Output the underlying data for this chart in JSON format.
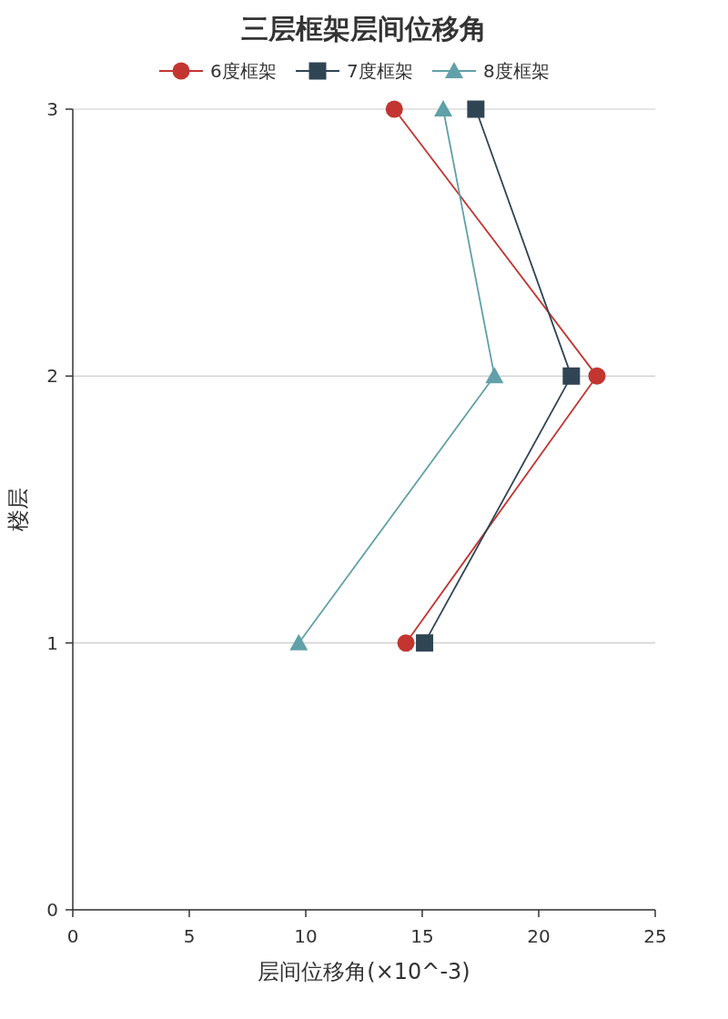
{
  "chart_data": {
    "type": "line",
    "title": "三层框架层间位移角",
    "xlabel": "层间位移角(×10^-3)",
    "ylabel": "楼层",
    "xlim": [
      0,
      25
    ],
    "xticks": [
      0,
      5,
      10,
      15,
      20,
      25
    ],
    "ylim": [
      0,
      3
    ],
    "yticks": [
      0,
      1,
      2,
      3
    ],
    "grid": "y",
    "legend": "top",
    "series": [
      {
        "name": "6度框架",
        "color": "#c23531",
        "marker": "circle",
        "x": [
          14.3,
          22.5,
          13.8
        ],
        "values": [
          1,
          2,
          3
        ]
      },
      {
        "name": "7度框架",
        "color": "#2f4554",
        "marker": "square",
        "x": [
          15.1,
          21.4,
          17.3
        ],
        "values": [
          1,
          2,
          3
        ]
      },
      {
        "name": "8度框架",
        "color": "#61a0a8",
        "marker": "triangle",
        "x": [
          9.7,
          18.1,
          15.9
        ],
        "values": [
          1,
          2,
          3
        ]
      }
    ]
  }
}
